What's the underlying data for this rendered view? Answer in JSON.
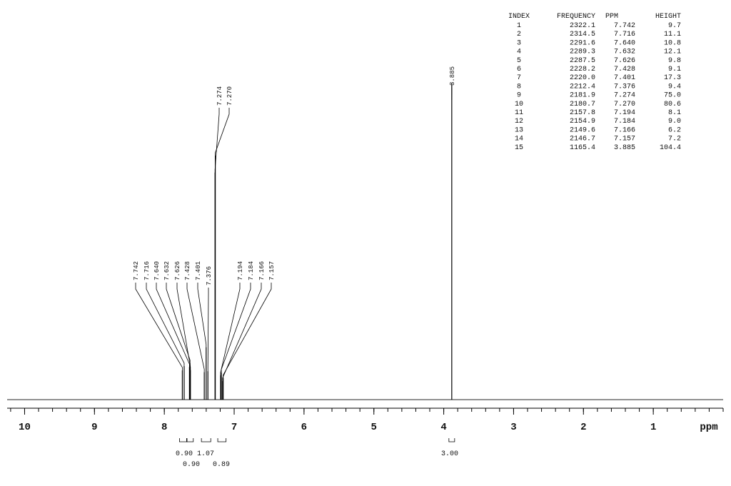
{
  "chart_data": {
    "type": "nmr",
    "x_label": "ppm",
    "xlim": [
      10.25,
      0.0
    ],
    "xticks": [
      10,
      9,
      8,
      7,
      6,
      5,
      4,
      3,
      2,
      1
    ],
    "ylim": [
      0,
      106
    ],
    "table": {
      "columns": [
        "INDEX",
        "FREQUENCY",
        "PPM",
        "HEIGHT"
      ],
      "rows": [
        [
          "1",
          "2322.1",
          "7.742",
          "9.7"
        ],
        [
          "2",
          "2314.5",
          "7.716",
          "11.1"
        ],
        [
          "3",
          "2291.6",
          "7.640",
          "10.8"
        ],
        [
          "4",
          "2289.3",
          "7.632",
          "12.1"
        ],
        [
          "5",
          "2287.5",
          "7.626",
          "9.8"
        ],
        [
          "6",
          "2228.2",
          "7.428",
          "9.1"
        ],
        [
          "7",
          "2220.0",
          "7.401",
          "17.3"
        ],
        [
          "8",
          "2212.4",
          "7.376",
          "9.4"
        ],
        [
          "9",
          "2181.9",
          "7.274",
          "75.0"
        ],
        [
          "10",
          "2180.7",
          "7.270",
          "80.6"
        ],
        [
          "11",
          "2157.8",
          "7.194",
          "8.1"
        ],
        [
          "12",
          "2154.9",
          "7.184",
          "9.0"
        ],
        [
          "13",
          "2149.6",
          "7.166",
          "6.2"
        ],
        [
          "14",
          "2146.7",
          "7.157",
          "7.2"
        ],
        [
          "15",
          "1165.4",
          "3.885",
          "104.4"
        ]
      ]
    },
    "peaks": {
      "ppm": [
        7.742,
        7.716,
        7.64,
        7.632,
        7.626,
        7.428,
        7.401,
        7.376,
        7.274,
        7.27,
        7.194,
        7.184,
        7.166,
        7.157,
        3.885
      ],
      "height": [
        9.7,
        11.1,
        10.8,
        12.1,
        9.8,
        9.1,
        17.3,
        9.4,
        75.0,
        80.6,
        8.1,
        9.0,
        6.2,
        7.2,
        104.4
      ]
    },
    "integrals": {
      "values": [
        0.9,
        0.9,
        1.07,
        0.89,
        3
      ],
      "value_labels": [
        "0.90",
        "0.90",
        "1.07",
        "0.89",
        "3.00"
      ]
    }
  }
}
